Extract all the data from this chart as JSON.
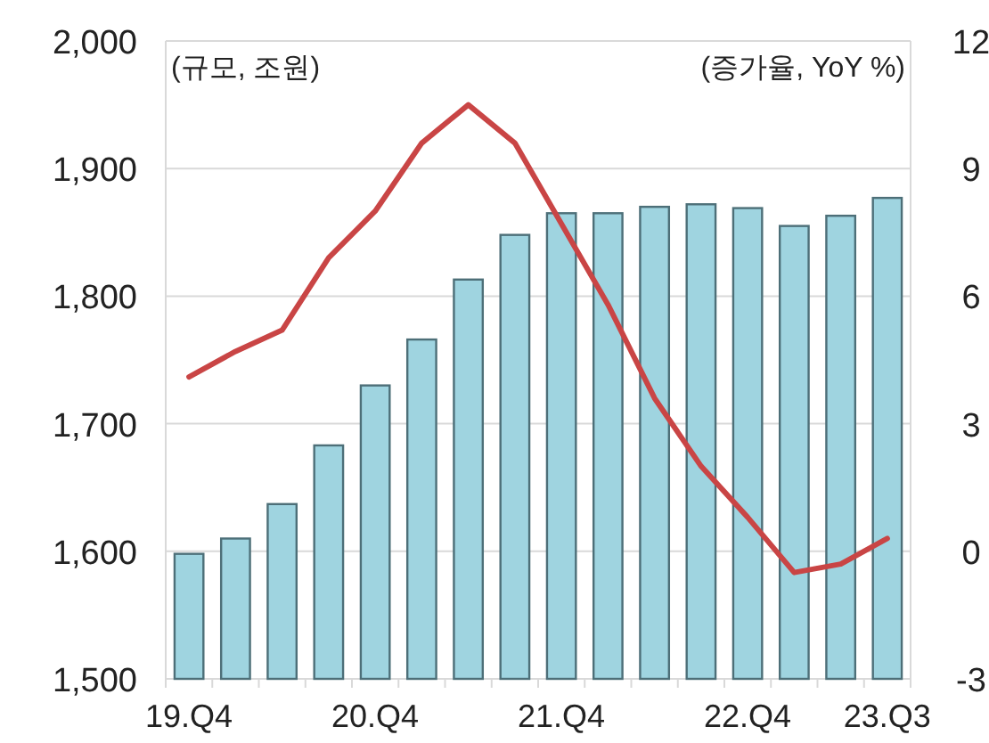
{
  "chart_data": {
    "type": "bar",
    "ylabel": "(규모, 조원)",
    "y2label": "(증가율, YoY %)",
    "categories": [
      "19.Q4",
      null,
      null,
      null,
      "20.Q4",
      null,
      null,
      null,
      "21.Q4",
      null,
      null,
      null,
      "22.Q4",
      null,
      null,
      "23.Q3"
    ],
    "series": [
      {
        "color": "#9fd4e0",
        "values": [
          1598,
          1610,
          1637,
          1683,
          1730,
          1766,
          1813,
          1848,
          1865,
          1865,
          1870,
          1872,
          1869,
          1855,
          1863,
          1877
        ]
      },
      {
        "type": "line",
        "axis": "y2",
        "color": "#c94545",
        "values": [
          4.1,
          4.7,
          5.2,
          6.9,
          8.0,
          9.6,
          10.5,
          9.6,
          7.7,
          5.8,
          3.6,
          2.0,
          0.8,
          -0.5,
          -0.3,
          0.3
        ]
      }
    ],
    "ylim": [
      1500,
      2000
    ],
    "yticks": [
      {
        "value": 1500,
        "label": "1,500"
      },
      {
        "value": 1600,
        "label": "1,600"
      },
      {
        "value": 1700,
        "label": "1,700"
      },
      {
        "value": 1800,
        "label": "1,800"
      },
      {
        "value": 1900,
        "label": "1,900"
      },
      {
        "value": 2000,
        "label": "2,000"
      }
    ],
    "y2lim": [
      -3,
      12
    ],
    "y2ticks": [
      -3,
      0,
      3,
      6,
      9,
      12
    ],
    "grid": "y",
    "marker": "none",
    "line_style": "solid"
  }
}
